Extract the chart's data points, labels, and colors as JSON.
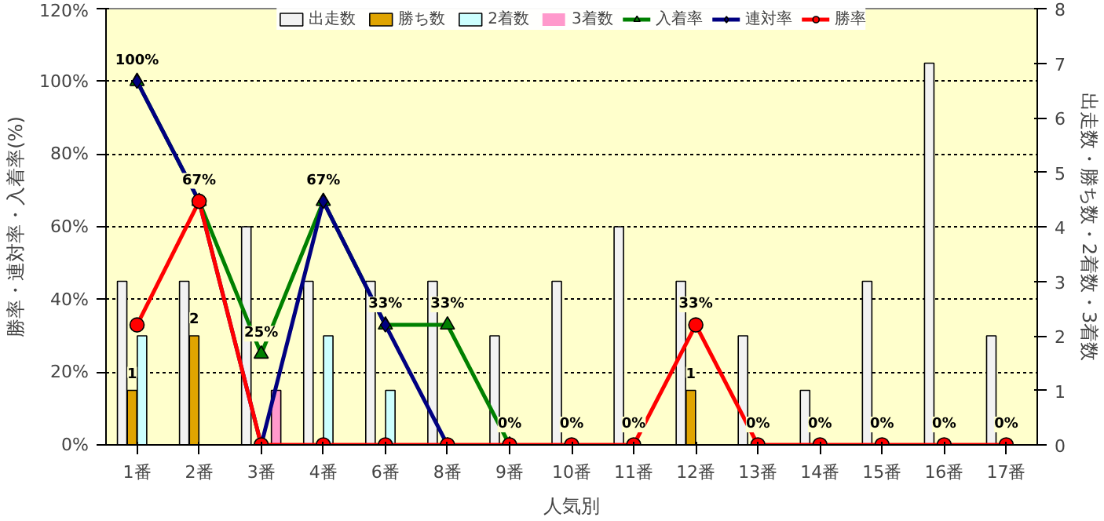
{
  "chart_data": {
    "type": "bar",
    "xlabel": "人気別",
    "ylabel": "勝率・連対率・入着率(%)",
    "y2label": "出走数・勝ち数・2着数・3着数",
    "categories": [
      "1番",
      "2番",
      "3番",
      "4番",
      "6番",
      "8番",
      "9番",
      "10番",
      "11番",
      "12番",
      "13番",
      "14番",
      "15番",
      "16番",
      "17番"
    ],
    "ylim": [
      0,
      120
    ],
    "yticks": [
      {
        "value": 0,
        "label": "0%"
      },
      {
        "value": 20,
        "label": "20%"
      },
      {
        "value": 40,
        "label": "40%"
      },
      {
        "value": 60,
        "label": "60%"
      },
      {
        "value": 80,
        "label": "80%"
      },
      {
        "value": 100,
        "label": "100%"
      },
      {
        "value": 120,
        "label": "120%"
      }
    ],
    "annotations": [
      {
        "text": "0%",
        "x": "10番",
        "y": 0
      },
      {
        "text": "0%",
        "x": "11番",
        "y": 0
      },
      {
        "text": "33%",
        "x": "12番",
        "y": 33
      },
      {
        "text": "0%",
        "x": "13番",
        "y": 0
      },
      {
        "text": "0%",
        "x": "14番",
        "y": 0
      },
      {
        "text": "0%",
        "x": "15番",
        "y": 0
      },
      {
        "text": "0%",
        "x": "16番",
        "y": 0
      },
      {
        "text": "0%",
        "x": "17番",
        "y": 0
      }
    ],
    "y2lim": [
      0,
      8
    ],
    "y2ticks": [
      0,
      1,
      2,
      3,
      4,
      5,
      6,
      7,
      8
    ],
    "grid": "y",
    "legend": "top",
    "series": [
      {
        "name": "出走数",
        "axis": "y2",
        "color": "#f2f2f2",
        "values": [
          3,
          3,
          4,
          3,
          3,
          3,
          2,
          3,
          4,
          3,
          2,
          1,
          3,
          7,
          2
        ]
      },
      {
        "name": "勝ち数",
        "axis": "y2",
        "color": "#e0a400",
        "values": [
          1,
          2,
          0,
          0,
          0,
          0,
          0,
          0,
          0,
          1,
          0,
          0,
          0,
          0,
          0
        ],
        "value_labels": [
          "1",
          "2",
          null,
          null,
          null,
          null,
          null,
          null,
          null,
          "1",
          null,
          null,
          null,
          null,
          null
        ]
      },
      {
        "name": "2着数",
        "axis": "y2",
        "color": "#ccffff",
        "values": [
          2,
          0,
          0,
          2,
          1,
          0,
          0,
          0,
          0,
          0,
          0,
          0,
          0,
          0,
          0
        ]
      },
      {
        "name": "3着数",
        "axis": "y2",
        "color": "#ff99cc",
        "values": [
          0,
          0,
          1,
          0,
          0,
          0,
          0,
          0,
          0,
          0,
          0,
          0,
          0,
          0,
          0
        ]
      },
      {
        "name": "入着率",
        "type": "line",
        "marker": "triangle",
        "color": "#008000",
        "values": [
          100,
          67,
          25,
          67,
          33,
          33,
          0,
          null,
          null,
          null,
          null,
          null,
          null,
          null,
          null
        ],
        "value_labels": [
          "100%",
          "67%",
          "25%",
          "67%",
          "33%",
          "33%",
          "0%",
          null,
          null,
          null,
          null,
          null,
          null,
          null,
          null
        ]
      },
      {
        "name": "連対率",
        "type": "line",
        "marker": "diamond",
        "color": "#000080",
        "values": [
          100,
          67,
          0,
          67,
          33,
          0,
          null,
          null,
          null,
          null,
          null,
          null,
          null,
          null,
          null
        ]
      },
      {
        "name": "勝率",
        "type": "line",
        "marker": "circle",
        "color": "#ff0000",
        "values": [
          33,
          67,
          0,
          0,
          0,
          0,
          0,
          0,
          0,
          33,
          0,
          0,
          0,
          0,
          0
        ]
      }
    ]
  }
}
